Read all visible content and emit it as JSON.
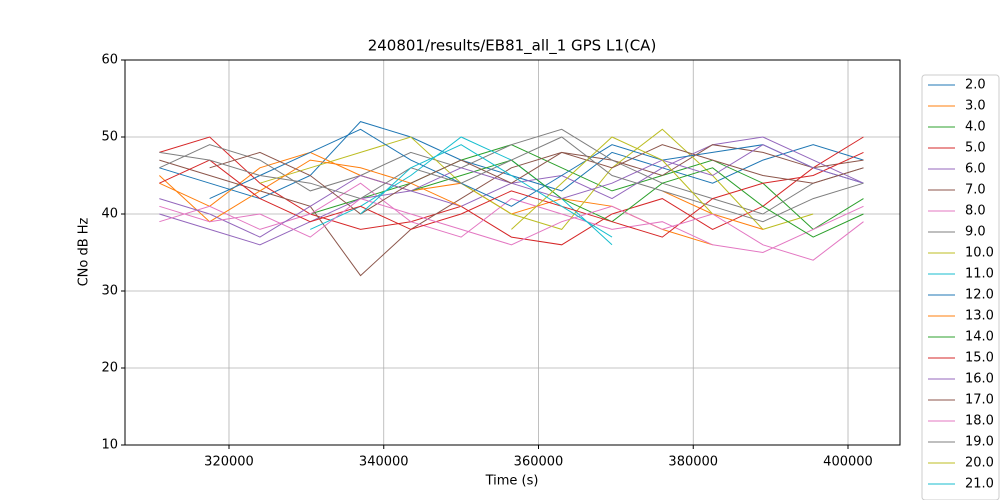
{
  "chart_data": {
    "type": "line",
    "title": "240801/results/EB81_all_1 GPS L1(CA)",
    "x_label": "Time (s)",
    "y_label": "CNo dB Hz",
    "xlim": [
      306560,
      406720
    ],
    "ylim": [
      10,
      60
    ],
    "xticks": [
      320000,
      340000,
      360000,
      380000,
      400000
    ],
    "yticks": [
      10,
      20,
      30,
      40,
      50,
      60
    ],
    "grid": true,
    "legend": "outside right",
    "x": [
      311000,
      317500,
      324000,
      330500,
      337000,
      343500,
      350000,
      356500,
      363000,
      369500,
      376000,
      382500,
      389000,
      395500,
      402000
    ],
    "series": [
      {
        "name": "2.0",
        "color": "#1f77b4",
        "values": [
          46,
          44,
          42,
          45,
          52,
          50,
          47,
          45,
          43,
          48,
          46,
          44,
          47,
          49,
          47
        ]
      },
      {
        "name": "3.0",
        "color": "#ff7f0e",
        "values": [
          44,
          41,
          46,
          48,
          45,
          43,
          44,
          40,
          42,
          41,
          38,
          36,
          null,
          null,
          null
        ]
      },
      {
        "name": "4.0",
        "color": "#2ca02c",
        "values": [
          null,
          null,
          null,
          40,
          42,
          44,
          47,
          49,
          46,
          43,
          45,
          47,
          44,
          38,
          42
        ]
      },
      {
        "name": "5.0",
        "color": "#d62728",
        "values": [
          48,
          50,
          44,
          40,
          38,
          39,
          41,
          37,
          36,
          40,
          42,
          38,
          41,
          46,
          50
        ]
      },
      {
        "name": "6.0",
        "color": "#9467bd",
        "values": [
          40,
          38,
          36,
          39,
          42,
          43,
          41,
          44,
          45,
          42,
          46,
          49,
          50,
          47,
          44
        ]
      },
      {
        "name": "7.0",
        "color": "#8c564b",
        "values": [
          47,
          45,
          43,
          41,
          32,
          38,
          42,
          46,
          48,
          47,
          45,
          49,
          48,
          46,
          47
        ]
      },
      {
        "name": "8.0",
        "color": "#e377c2",
        "values": [
          39,
          41,
          38,
          40,
          44,
          39,
          37,
          42,
          40,
          38,
          39,
          36,
          35,
          38,
          41
        ]
      },
      {
        "name": "9.0",
        "color": "#7f7f7f",
        "values": [
          46,
          49,
          47,
          43,
          45,
          48,
          46,
          49,
          51,
          47,
          44,
          42,
          40,
          44,
          46
        ]
      },
      {
        "name": "10.0",
        "color": "#bcbd22",
        "values": [
          null,
          null,
          44,
          46,
          48,
          50,
          44,
          40,
          38,
          46,
          51,
          45,
          38,
          40,
          null
        ]
      },
      {
        "name": "11.0",
        "color": "#17becf",
        "values": [
          null,
          null,
          null,
          38,
          41,
          45,
          50,
          47,
          42,
          36,
          null,
          null,
          null,
          null,
          null
        ]
      },
      {
        "name": "12.0",
        "color": "#1f77b4",
        "values": [
          null,
          42,
          45,
          48,
          51,
          47,
          44,
          41,
          45,
          49,
          47,
          48,
          49,
          46,
          44
        ]
      },
      {
        "name": "13.0",
        "color": "#ff7f0e",
        "values": [
          45,
          39,
          43,
          47,
          46,
          44,
          41,
          null,
          null,
          null,
          43,
          40,
          38,
          null,
          null
        ]
      },
      {
        "name": "14.0",
        "color": "#2ca02c",
        "values": [
          null,
          null,
          null,
          null,
          null,
          43,
          45,
          47,
          42,
          39,
          44,
          46,
          41,
          37,
          40
        ]
      },
      {
        "name": "15.0",
        "color": "#d62728",
        "values": [
          44,
          47,
          42,
          39,
          41,
          38,
          40,
          43,
          41,
          39,
          37,
          42,
          44,
          45,
          48
        ]
      },
      {
        "name": "16.0",
        "color": "#9467bd",
        "values": [
          42,
          40,
          37,
          41,
          45,
          43,
          46,
          44,
          42,
          44,
          47,
          45,
          49,
          46,
          44
        ]
      },
      {
        "name": "17.0",
        "color": "#8c564b",
        "values": [
          null,
          46,
          48,
          45,
          40,
          44,
          47,
          44,
          48,
          46,
          49,
          47,
          45,
          44,
          46
        ]
      },
      {
        "name": "18.0",
        "color": "#e377c2",
        "values": [
          41,
          39,
          40,
          37,
          42,
          40,
          38,
          36,
          39,
          41,
          38,
          40,
          36,
          34,
          39
        ]
      },
      {
        "name": "19.0",
        "color": "#7f7f7f",
        "values": [
          48,
          47,
          45,
          44,
          42,
          46,
          44,
          47,
          50,
          45,
          43,
          41,
          39,
          42,
          44
        ]
      },
      {
        "name": "20.0",
        "color": "#bcbd22",
        "values": [
          null,
          null,
          null,
          null,
          null,
          null,
          null,
          38,
          44,
          50,
          47,
          40,
          null,
          null,
          null
        ]
      },
      {
        "name": "21.0",
        "color": "#17becf",
        "values": [
          null,
          null,
          null,
          null,
          40,
          46,
          49,
          45,
          41,
          37,
          null,
          null,
          null,
          null,
          null
        ]
      }
    ]
  }
}
